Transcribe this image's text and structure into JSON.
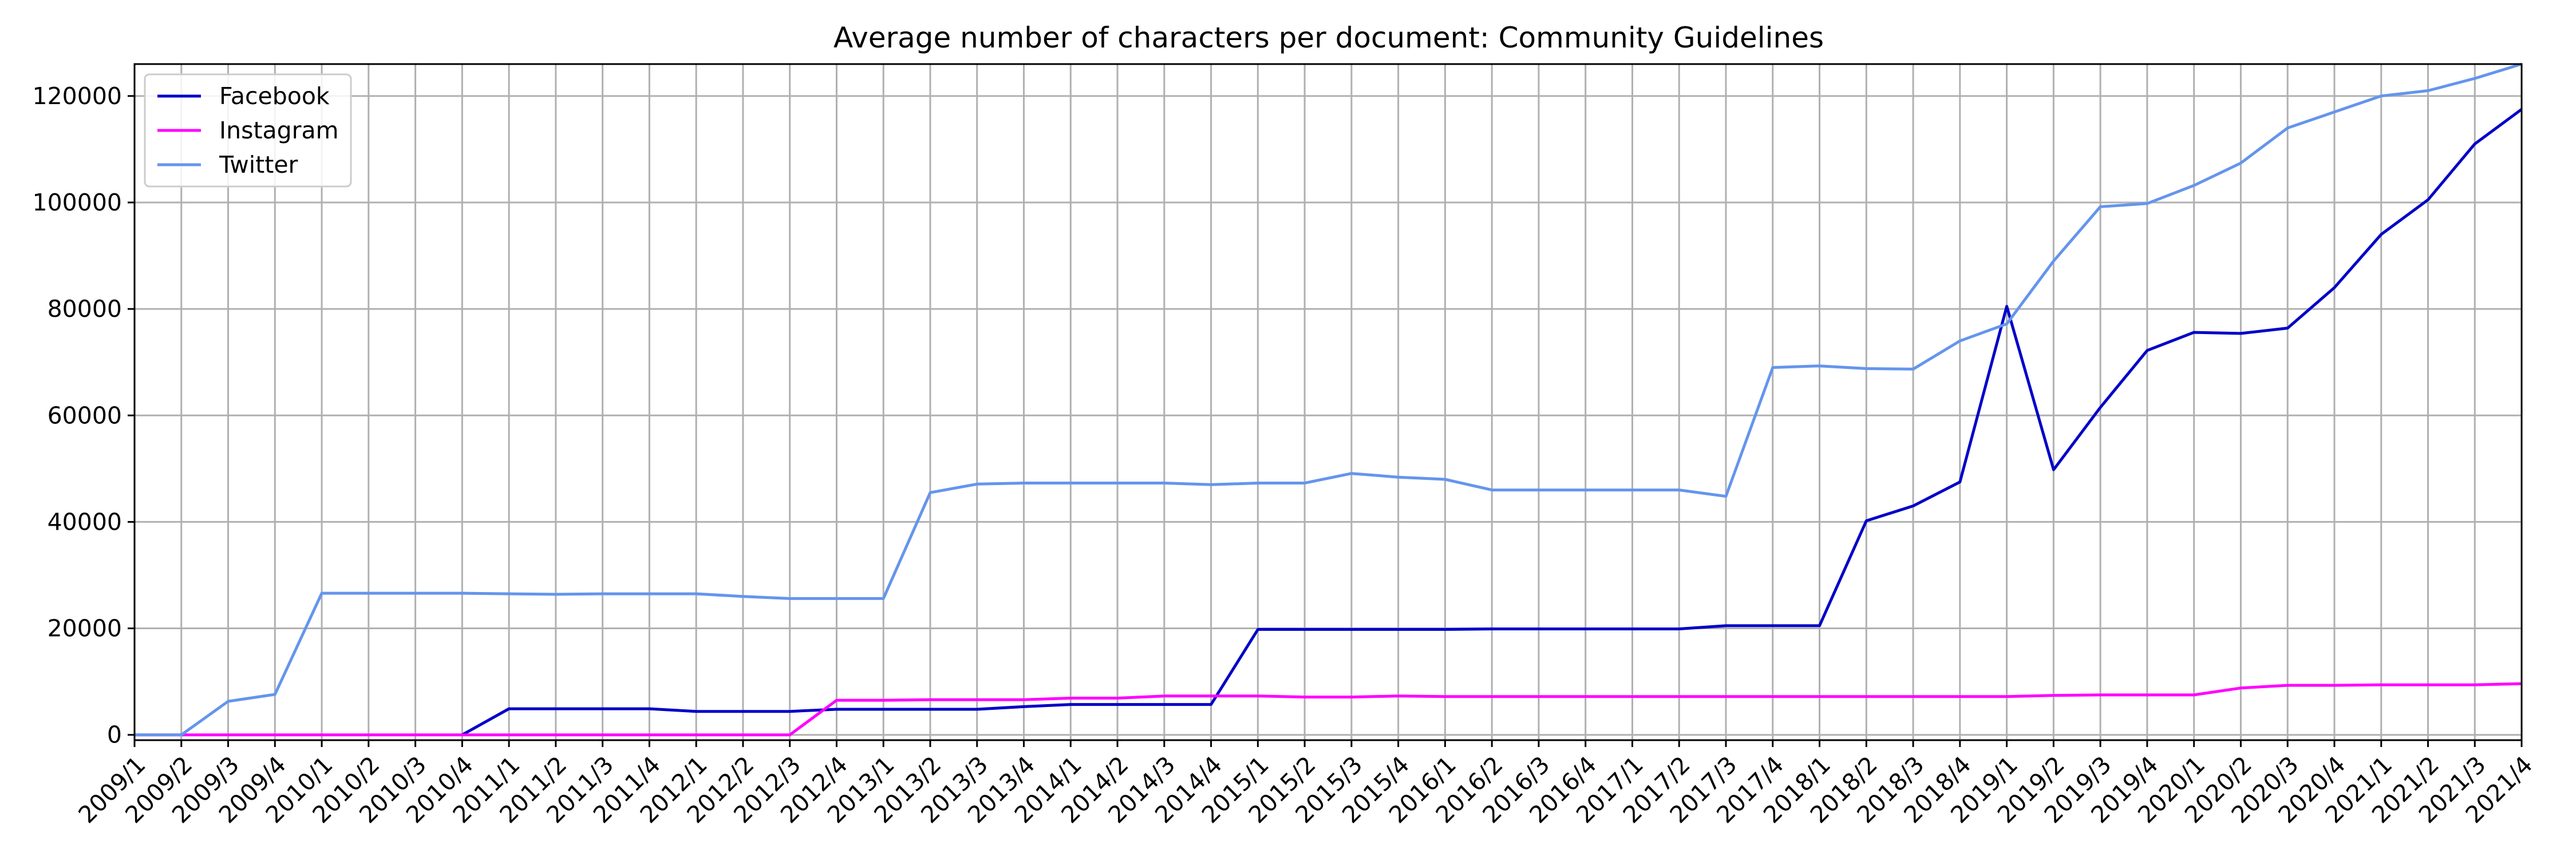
{
  "chart_data": {
    "type": "line",
    "title": "Average number of characters per document: Community Guidelines",
    "xlabel": "",
    "ylabel": "",
    "ylim": [
      -1000,
      126000
    ],
    "yticks": [
      0,
      20000,
      40000,
      60000,
      80000,
      100000,
      120000
    ],
    "grid": true,
    "legend_position": "top-left",
    "categories": [
      "2009/1",
      "2009/2",
      "2009/3",
      "2009/4",
      "2010/1",
      "2010/2",
      "2010/3",
      "2010/4",
      "2011/1",
      "2011/2",
      "2011/3",
      "2011/4",
      "2012/1",
      "2012/2",
      "2012/3",
      "2012/4",
      "2013/1",
      "2013/2",
      "2013/3",
      "2013/4",
      "2014/1",
      "2014/2",
      "2014/3",
      "2014/4",
      "2015/1",
      "2015/2",
      "2015/3",
      "2015/4",
      "2016/1",
      "2016/2",
      "2016/3",
      "2016/4",
      "2017/1",
      "2017/2",
      "2017/3",
      "2017/4",
      "2018/1",
      "2018/2",
      "2018/3",
      "2018/4",
      "2019/1",
      "2019/2",
      "2019/3",
      "2019/4",
      "2020/1",
      "2020/2",
      "2020/3",
      "2020/4",
      "2021/1",
      "2021/2",
      "2021/3",
      "2021/4"
    ],
    "series": [
      {
        "name": "Facebook",
        "color": "#0000c8",
        "values": [
          null,
          null,
          null,
          null,
          null,
          null,
          null,
          0,
          4900,
          4900,
          4900,
          4900,
          4400,
          4400,
          4400,
          4800,
          4800,
          4800,
          4800,
          5300,
          5700,
          5700,
          5700,
          5700,
          19800,
          19800,
          19800,
          19800,
          19800,
          19900,
          19900,
          19900,
          19900,
          19900,
          20500,
          20500,
          20500,
          40200,
          43000,
          47500,
          80500,
          49800,
          61500,
          72200,
          75600,
          75400,
          76400,
          84000,
          94000,
          100500,
          111000,
          117500
        ]
      },
      {
        "name": "Instagram",
        "color": "#ff00ff",
        "values": [
          0,
          0,
          0,
          0,
          0,
          0,
          0,
          0,
          0,
          0,
          0,
          0,
          0,
          0,
          0,
          6500,
          6500,
          6600,
          6600,
          6600,
          6900,
          6900,
          7300,
          7300,
          7300,
          7100,
          7100,
          7300,
          7200,
          7200,
          7200,
          7200,
          7200,
          7200,
          7200,
          7200,
          7200,
          7200,
          7200,
          7200,
          7200,
          7400,
          7500,
          7500,
          7500,
          8800,
          9300,
          9300,
          9400,
          9400,
          9400,
          9600
        ]
      },
      {
        "name": "Twitter",
        "color": "#6495ed",
        "values": [
          0,
          0,
          6300,
          7600,
          26600,
          26600,
          26600,
          26600,
          26500,
          26400,
          26500,
          26500,
          26500,
          26000,
          25600,
          25600,
          25600,
          45500,
          47100,
          47300,
          47300,
          47300,
          47300,
          47000,
          47300,
          47300,
          49100,
          48400,
          48000,
          46000,
          46000,
          46000,
          46000,
          46000,
          44800,
          69000,
          69300,
          68800,
          68700,
          74000,
          77200,
          89000,
          99200,
          99800,
          103200,
          107400,
          114000,
          117000,
          120000,
          121000,
          123300,
          126000
        ]
      }
    ]
  }
}
